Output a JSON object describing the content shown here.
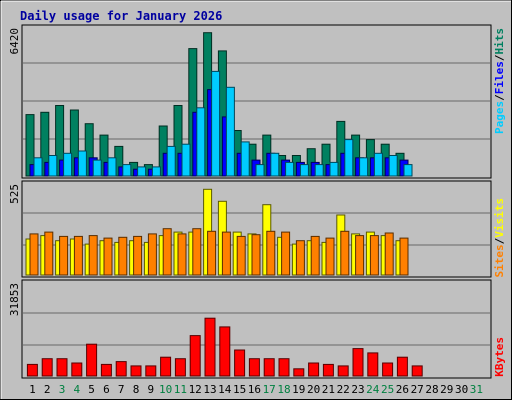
{
  "chart_data": {
    "type": "bar",
    "title": "Daily usage for January 2026",
    "categories": [
      "1",
      "2",
      "3",
      "4",
      "5",
      "6",
      "7",
      "8",
      "9",
      "10",
      "11",
      "12",
      "13",
      "14",
      "15",
      "16",
      "17",
      "18",
      "19",
      "20",
      "21",
      "22",
      "23",
      "24",
      "25",
      "26",
      "27",
      "28",
      "29",
      "30",
      "31"
    ],
    "weekend_days": [
      "3",
      "4",
      "10",
      "11",
      "17",
      "18",
      "24",
      "25",
      "31"
    ],
    "panels": [
      {
        "name": "hits-files-pages",
        "axis_max_label": "6420",
        "ylim": [
          0,
          6420
        ],
        "right_labels": [
          "Pages",
          "Files",
          "Hits"
        ],
        "series": [
          {
            "name": "Hits",
            "color": "#008060",
            "values": [
              2700,
              2800,
              3100,
              2900,
              2300,
              1800,
              1300,
              600,
              500,
              2200,
              3100,
              5600,
              6300,
              5500,
              2000,
              1400,
              1800,
              900,
              900,
              1200,
              1400,
              2400,
              1800,
              1600,
              1400,
              1000,
              0,
              0,
              0,
              0,
              0
            ]
          },
          {
            "name": "Files",
            "color": "#0000ff",
            "values": [
              500,
              600,
              700,
              800,
              800,
              600,
              400,
              300,
              300,
              1000,
              1000,
              2800,
              3800,
              2600,
              1000,
              700,
              1000,
              700,
              600,
              600,
              500,
              1000,
              800,
              800,
              800,
              700,
              0,
              0,
              0,
              0,
              0
            ]
          },
          {
            "name": "Pages",
            "color": "#00ccff",
            "values": [
              800,
              900,
              1000,
              1100,
              700,
              800,
              500,
              400,
              400,
              1300,
              1400,
              3000,
              4600,
              3900,
              1500,
              500,
              1000,
              600,
              500,
              500,
              600,
              1600,
              800,
              1000,
              900,
              500,
              0,
              0,
              0,
              0,
              0
            ]
          }
        ]
      },
      {
        "name": "visits-sites",
        "axis_max_label": "525",
        "ylim": [
          0,
          525
        ],
        "right_labels": [
          "Sites",
          "Visits"
        ],
        "series": [
          {
            "name": "Visits",
            "color": "#ffff00",
            "values": [
              210,
              230,
              200,
              210,
              180,
              200,
              190,
              200,
              190,
              230,
              250,
              250,
              500,
              430,
              250,
              240,
              410,
              220,
              180,
              200,
              190,
              350,
              240,
              250,
              230,
              200,
              0,
              0,
              0,
              0,
              0
            ]
          },
          {
            "name": "Sites",
            "color": "#ff8000",
            "values": [
              240,
              250,
              225,
              225,
              230,
              215,
              220,
              225,
              240,
              270,
              240,
              270,
              255,
              250,
              225,
              235,
              255,
              250,
              200,
              225,
              215,
              255,
              230,
              230,
              245,
              215,
              0,
              0,
              0,
              0,
              0
            ]
          }
        ]
      },
      {
        "name": "kbytes",
        "axis_max_label": "31853",
        "ylim": [
          0,
          31853
        ],
        "right_labels": [
          "KBytes"
        ],
        "series": [
          {
            "name": "KBytes",
            "color": "#ff0000",
            "values": [
              4000,
              6000,
              6000,
              4500,
              11000,
              4000,
              5000,
              3500,
              3500,
              6500,
              6000,
              14000,
              20000,
              17000,
              9000,
              6000,
              6000,
              6000,
              2500,
              4500,
              4000,
              3500,
              9500,
              8000,
              4500,
              6500,
              3500,
              0,
              0,
              0,
              0
            ]
          }
        ]
      }
    ]
  }
}
